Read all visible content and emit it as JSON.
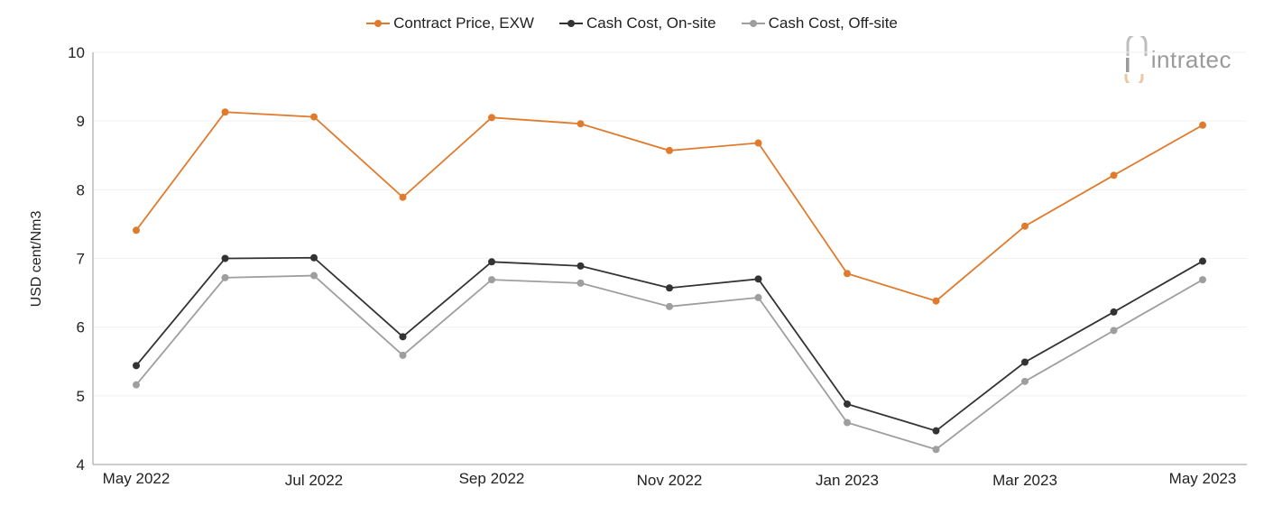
{
  "logo": {
    "text": "intratec"
  },
  "chart_data": {
    "type": "line",
    "title": "",
    "xlabel": "",
    "ylabel": "USD cent/Nm3",
    "ylim": [
      4,
      10
    ],
    "yticks": [
      "4",
      "5",
      "6",
      "7",
      "8",
      "9",
      "10"
    ],
    "x": [
      "May 2022",
      "Jun 2022",
      "Jul 2022",
      "Aug 2022",
      "Sep 2022",
      "Oct 2022",
      "Nov 2022",
      "Dec 2022",
      "Jan 2023",
      "Feb 2023",
      "Mar 2023",
      "Apr 2023",
      "May 2023"
    ],
    "xtick_labels": [
      {
        "label": "May 2022",
        "index": 0
      },
      {
        "label": "Jul 2022",
        "index": 2
      },
      {
        "label": "Sep 2022",
        "index": 4
      },
      {
        "label": "Nov 2022",
        "index": 6
      },
      {
        "label": "Jan 2023",
        "index": 8
      },
      {
        "label": "Mar 2023",
        "index": 10
      },
      {
        "label": "May 2023",
        "index": 12
      }
    ],
    "grid": true,
    "legend_position": "top-center",
    "series": [
      {
        "name": "Contract Price, EXW",
        "color": "#e07b2e",
        "values": [
          7.41,
          9.13,
          9.06,
          7.89,
          9.05,
          8.96,
          8.57,
          8.68,
          6.78,
          6.38,
          7.47,
          8.21,
          8.94
        ]
      },
      {
        "name": "Cash Cost, On-site",
        "color": "#333333",
        "values": [
          5.44,
          7.0,
          7.01,
          5.86,
          6.95,
          6.89,
          6.57,
          6.7,
          4.88,
          4.49,
          5.49,
          6.22,
          6.96
        ]
      },
      {
        "name": "Cash Cost, Off-site",
        "color": "#9e9e9e",
        "values": [
          5.16,
          6.72,
          6.75,
          5.59,
          6.69,
          6.64,
          6.3,
          6.43,
          4.61,
          4.22,
          5.21,
          5.95,
          6.69
        ]
      }
    ]
  }
}
